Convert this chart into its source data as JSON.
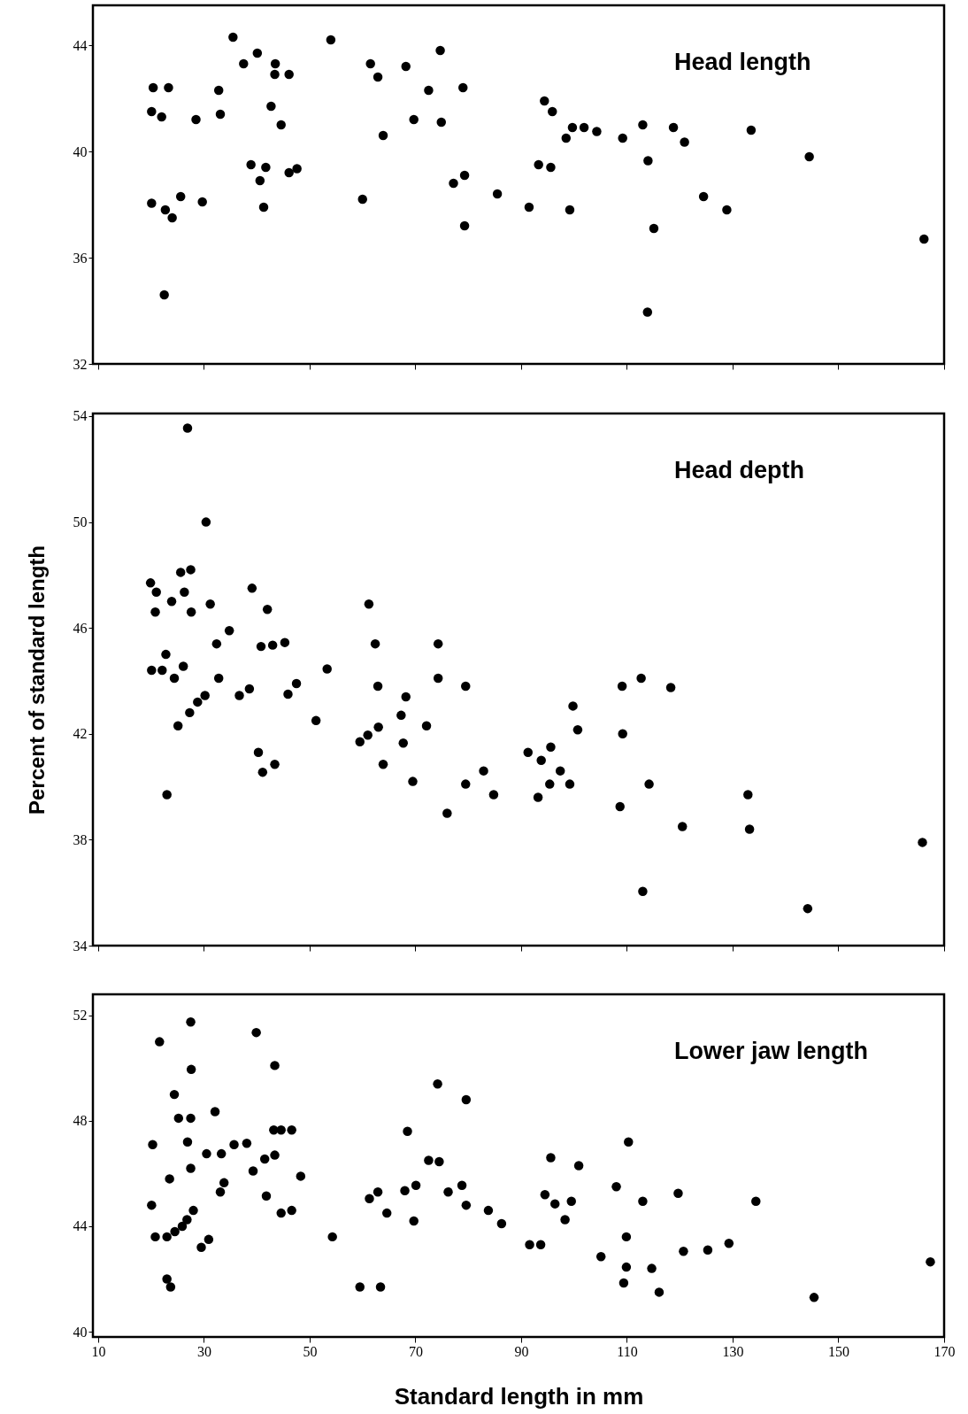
{
  "chart_data": [
    {
      "type": "scatter",
      "title": "Head length",
      "xlim": [
        9,
        170
      ],
      "xticks": [
        10,
        30,
        50,
        70,
        90,
        110,
        130,
        150,
        170
      ],
      "ylim": [
        32,
        45.5
      ],
      "yticks": [
        32,
        36,
        40,
        44
      ],
      "tick_labels": "y",
      "marker": "circle",
      "x": [
        20.1,
        20.4,
        22.0,
        23.3,
        20.1,
        22.7,
        24.0,
        25.6,
        22.5,
        28.5,
        29.7,
        32.8,
        33.1,
        37.5,
        40.1,
        38.9,
        40.6,
        41.7,
        41.3,
        42.7,
        43.4,
        43.5,
        46.1,
        46.1,
        47.6,
        44.6,
        54.0,
        60.0,
        61.5,
        62.9,
        63.9,
        68.2,
        69.7,
        72.5,
        74.7,
        74.9,
        79.0,
        77.2,
        79.3,
        79.3,
        85.5,
        91.5,
        93.3,
        94.4,
        95.9,
        95.6,
        98.5,
        99.7,
        101.9,
        99.2,
        104.3,
        109.2,
        113.0,
        114.0,
        115.1,
        113.9,
        118.8,
        120.9,
        124.5,
        128.9,
        133.5,
        144.5,
        166.2,
        35.5
      ],
      "series": [
        {
          "color": "#000000",
          "values": [
            41.5,
            42.4,
            41.3,
            42.4,
            38.05,
            37.8,
            37.5,
            38.3,
            34.6,
            41.2,
            38.1,
            42.3,
            41.4,
            43.3,
            43.7,
            39.5,
            38.9,
            39.4,
            37.9,
            41.7,
            42.9,
            43.3,
            42.9,
            39.2,
            39.35,
            41.0,
            44.2,
            38.2,
            43.3,
            42.8,
            40.6,
            43.2,
            41.2,
            42.3,
            43.8,
            41.1,
            42.4,
            38.8,
            39.1,
            37.2,
            38.4,
            37.9,
            39.5,
            41.9,
            41.5,
            39.4,
            40.5,
            40.9,
            40.9,
            37.8,
            40.75,
            40.5,
            41.0,
            39.65,
            37.1,
            33.95,
            40.9,
            40.35,
            38.3,
            37.8,
            40.8,
            39.8,
            36.7,
            44.3
          ]
        }
      ]
    },
    {
      "type": "scatter",
      "title": "Head depth",
      "ylabel": "Percent of standard length",
      "xlim": [
        9,
        170
      ],
      "xticks": [
        10,
        30,
        50,
        70,
        90,
        110,
        130,
        150,
        170
      ],
      "ylim": [
        34,
        54.1
      ],
      "yticks": [
        34,
        38,
        42,
        46,
        50,
        54
      ],
      "tick_labels": "y",
      "marker": "circle",
      "x": [
        19.9,
        21.0,
        20.8,
        20.1,
        22.1,
        22.8,
        23.9,
        24.4,
        23.0,
        25.6,
        26.3,
        26.1,
        25.1,
        26.9,
        27.5,
        27.6,
        27.3,
        28.8,
        30.2,
        30.4,
        31.2,
        32.8,
        32.4,
        34.8,
        36.7,
        39.1,
        38.6,
        40.3,
        41.1,
        42.0,
        40.8,
        43.0,
        43.4,
        45.3,
        45.9,
        47.5,
        51.2,
        53.3,
        59.5,
        61.0,
        61.2,
        62.4,
        62.9,
        63.0,
        63.9,
        67.7,
        68.2,
        67.3,
        69.5,
        72.1,
        74.3,
        74.3,
        79.5,
        79.5,
        82.9,
        84.8,
        91.3,
        93.8,
        95.6,
        95.4,
        93.2,
        97.4,
        99.2,
        99.8,
        100.7,
        109.1,
        109.2,
        108.7,
        112.7,
        114.2,
        113.0,
        118.3,
        132.9,
        133.2,
        165.9,
        144.2,
        76.0,
        120.5
      ],
      "series": [
        {
          "color": "#000000",
          "values": [
            47.7,
            47.35,
            46.6,
            44.4,
            44.4,
            45.0,
            47.0,
            44.1,
            39.7,
            48.1,
            47.35,
            44.55,
            42.3,
            53.55,
            48.2,
            46.6,
            42.8,
            43.2,
            43.45,
            50.0,
            46.9,
            44.1,
            45.4,
            45.9,
            43.45,
            47.5,
            43.7,
            41.3,
            40.55,
            46.7,
            45.3,
            45.35,
            40.85,
            45.45,
            43.5,
            43.9,
            42.5,
            44.45,
            41.7,
            41.95,
            46.9,
            45.4,
            43.8,
            42.25,
            40.85,
            41.65,
            43.4,
            42.7,
            40.2,
            42.3,
            45.4,
            44.1,
            43.8,
            40.1,
            40.6,
            39.7,
            41.3,
            41.0,
            41.5,
            40.1,
            39.6,
            40.6,
            40.1,
            43.05,
            42.15,
            43.8,
            42.0,
            39.25,
            44.1,
            40.1,
            36.05,
            43.75,
            39.7,
            38.4,
            37.9,
            35.4,
            39.0,
            38.5
          ]
        }
      ]
    },
    {
      "type": "scatter",
      "title": "Lower jaw length",
      "xlabel": "Standard length in mm",
      "xlim": [
        9,
        170
      ],
      "xticks": [
        10,
        30,
        50,
        70,
        90,
        110,
        130,
        150,
        170
      ],
      "ylim": [
        39.8,
        52.8
      ],
      "yticks": [
        40,
        44,
        48,
        52
      ],
      "marker": "circle",
      "x": [
        20.3,
        20.1,
        20.8,
        21.6,
        23.0,
        23.5,
        24.4,
        25.2,
        24.5,
        25.9,
        26.8,
        26.9,
        27.5,
        27.5,
        27.6,
        27.5,
        28.0,
        29.5,
        30.9,
        30.5,
        32.1,
        33.3,
        33.8,
        33.1,
        35.7,
        38.1,
        39.3,
        39.9,
        41.5,
        41.8,
        43.4,
        43.2,
        44.6,
        43.4,
        46.6,
        46.6,
        48.3,
        44.6,
        54.3,
        59.5,
        61.3,
        62.9,
        63.4,
        64.6,
        68.5,
        68.0,
        70.1,
        69.7,
        72.5,
        74.5,
        74.2,
        76.2,
        78.8,
        79.6,
        79.6,
        83.8,
        86.3,
        91.6,
        93.7,
        94.5,
        95.6,
        96.4,
        98.3,
        99.5,
        100.9,
        105.1,
        108.0,
        109.9,
        110.3,
        109.9,
        109.4,
        113.0,
        114.7,
        116.1,
        119.7,
        120.7,
        125.3,
        129.3,
        134.4,
        145.4,
        167.4,
        23.0,
        23.7
      ],
      "series": [
        {
          "color": "#000000",
          "values": [
            47.1,
            44.8,
            43.6,
            51.0,
            43.6,
            45.8,
            49.0,
            48.1,
            43.8,
            44.0,
            44.25,
            47.2,
            48.1,
            46.2,
            49.95,
            51.75,
            44.6,
            43.2,
            43.5,
            46.75,
            48.35,
            46.75,
            45.65,
            45.3,
            47.1,
            47.15,
            46.1,
            51.35,
            46.55,
            45.15,
            50.1,
            47.65,
            47.65,
            46.7,
            47.65,
            44.6,
            45.9,
            44.5,
            43.6,
            41.7,
            45.05,
            45.3,
            41.7,
            44.5,
            47.6,
            45.35,
            45.55,
            44.2,
            46.5,
            46.45,
            49.4,
            45.3,
            45.55,
            44.8,
            48.8,
            44.6,
            44.1,
            43.3,
            43.3,
            45.2,
            46.6,
            44.85,
            44.25,
            44.95,
            46.3,
            42.85,
            45.5,
            43.6,
            47.2,
            42.45,
            41.85,
            44.95,
            42.4,
            41.5,
            45.25,
            43.05,
            43.1,
            43.35,
            44.95,
            41.3,
            42.65,
            42.0,
            41.7
          ]
        }
      ]
    }
  ]
}
